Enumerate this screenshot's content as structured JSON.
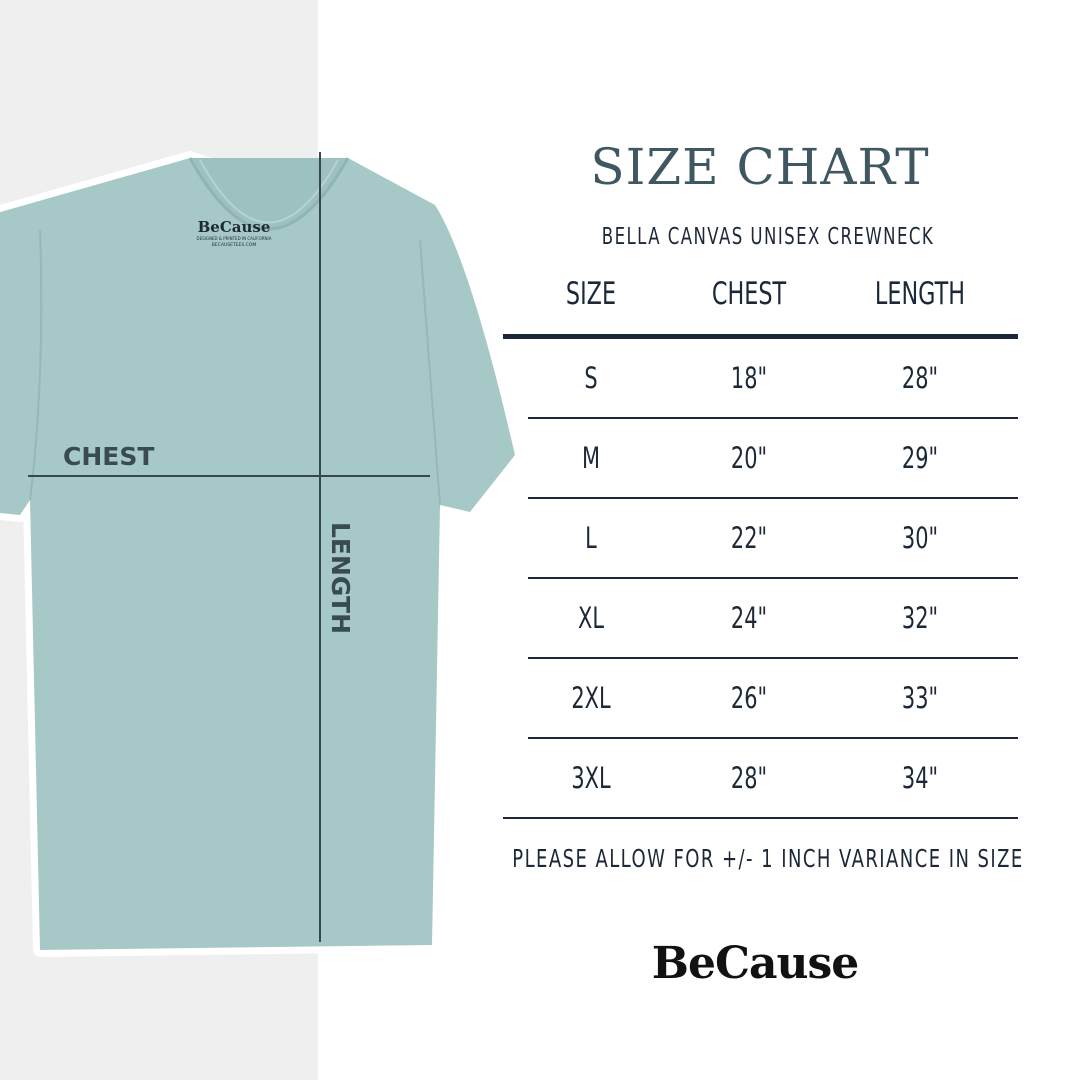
{
  "chart_data": {
    "type": "table",
    "title": "SIZE CHART",
    "subtitle": "BELLA CANVAS UNISEX CREWNECK",
    "columns": [
      "SIZE",
      "CHEST",
      "LENGTH"
    ],
    "rows": [
      [
        "S",
        "18\"",
        "28\""
      ],
      [
        "M",
        "20\"",
        "29\""
      ],
      [
        "L",
        "22\"",
        "30\""
      ],
      [
        "XL",
        "24\"",
        "32\""
      ],
      [
        "2XL",
        "26\"",
        "33\""
      ],
      [
        "3XL",
        "28\"",
        "34\""
      ]
    ],
    "note": "PLEASE ALLOW FOR +/- 1 INCH VARIANCE IN SIZE"
  },
  "shirt": {
    "color": "#a6c9c7",
    "label_brand": "BeCause",
    "label_line1": "DESIGNED & PRINTED IN CALIFORNIA",
    "label_line2": "BECAUSETEES.COM",
    "chest_label": "CHEST",
    "length_label": "LENGTH"
  },
  "brand": {
    "logo": "BeCause"
  },
  "colors": {
    "title": "#3f5761",
    "text": "#1c2838",
    "background_left": "#efefef"
  }
}
